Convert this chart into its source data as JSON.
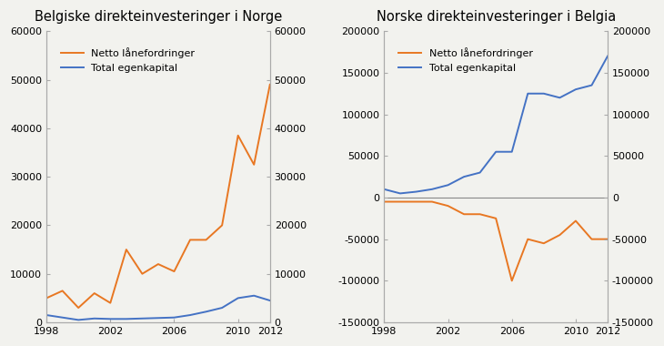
{
  "years": [
    1998,
    1999,
    2000,
    2001,
    2002,
    2003,
    2004,
    2005,
    2006,
    2007,
    2008,
    2009,
    2010,
    2011,
    2012
  ],
  "left_loan": [
    5000,
    6500,
    3000,
    6000,
    4000,
    15000,
    10000,
    12000,
    10500,
    17000,
    17000,
    20000,
    38500,
    32500,
    49000
  ],
  "left_equity": [
    1500,
    1000,
    500,
    800,
    700,
    700,
    800,
    900,
    1000,
    1500,
    2200,
    3000,
    5000,
    5500,
    4500
  ],
  "right_loan": [
    -5000,
    -5000,
    -5000,
    -5000,
    -10000,
    -20000,
    -20000,
    -25000,
    -100000,
    -50000,
    -55000,
    -45000,
    -28000,
    -50000,
    -50000
  ],
  "right_equity": [
    10000,
    5000,
    7000,
    10000,
    15000,
    25000,
    30000,
    55000,
    55000,
    125000,
    125000,
    120000,
    130000,
    135000,
    170000
  ],
  "left_title": "Belgiske direkteinvesteringer i Norge",
  "right_title": "Norske direkteinvesteringer i Belgia",
  "loan_label": "Netto lånefordringer",
  "equity_label": "Total egenkapital",
  "loan_color": "#E87722",
  "equity_color": "#4472C4",
  "left_ylim": [
    0,
    60000
  ],
  "right_ylim": [
    -150000,
    200000
  ],
  "left_yticks": [
    0,
    10000,
    20000,
    30000,
    40000,
    50000,
    60000
  ],
  "right_yticks": [
    -150000,
    -100000,
    -50000,
    0,
    50000,
    100000,
    150000,
    200000
  ],
  "xticks": [
    1998,
    2002,
    2006,
    2010,
    2012
  ],
  "background_color": "#f2f2ee",
  "spine_color": "#aaaaaa",
  "tick_fontsize": 8,
  "title_fontsize": 10.5,
  "legend_fontsize": 8,
  "linewidth": 1.4
}
